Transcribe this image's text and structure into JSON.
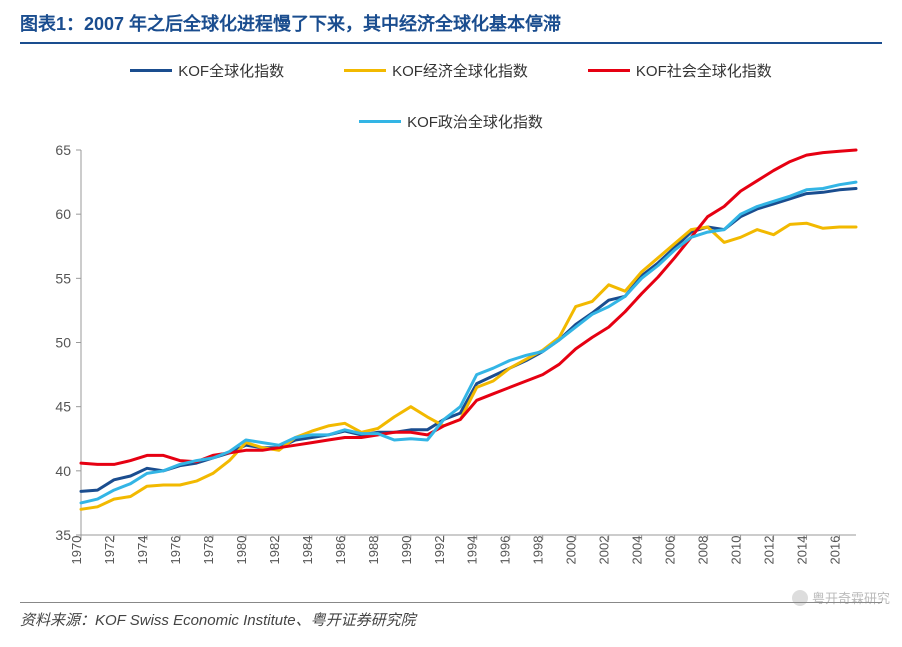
{
  "title": {
    "prefix": "图表1：",
    "text": "2007 年之后全球化进程慢了下来，其中经济全球化基本停滞"
  },
  "source": "资料来源：KOF Swiss Economic Institute、粤开证券研究院",
  "watermark": "粤开奇霖研究",
  "chart": {
    "type": "line",
    "ylim": [
      35,
      65
    ],
    "ytick_step": 5,
    "yticks": [
      35,
      40,
      45,
      50,
      55,
      60,
      65
    ],
    "xticks": [
      1970,
      1972,
      1974,
      1976,
      1978,
      1980,
      1982,
      1984,
      1986,
      1988,
      1990,
      1992,
      1994,
      1996,
      1998,
      2000,
      2002,
      2004,
      2006,
      2008,
      2010,
      2012,
      2014,
      2016
    ],
    "x_range": [
      1970,
      2017
    ],
    "background_color": "#ffffff",
    "axis_color": "#999999",
    "tick_label_color": "#555555",
    "legend_position": "top-center",
    "line_width": 3,
    "series": [
      {
        "name": "KOF全球化指数",
        "color": "#1a4d8f",
        "data": [
          38.4,
          38.5,
          39.3,
          39.6,
          40.2,
          40.0,
          40.4,
          40.6,
          41.0,
          41.4,
          42.0,
          41.8,
          41.8,
          42.4,
          42.6,
          42.8,
          43.1,
          42.8,
          43.0,
          43.0,
          43.2,
          43.2,
          44.0,
          44.5,
          46.8,
          47.4,
          48.0,
          48.6,
          49.3,
          50.2,
          51.4,
          52.3,
          53.3,
          53.6,
          55.2,
          56.2,
          57.4,
          58.6,
          59.0,
          58.8,
          59.8,
          60.4,
          60.8,
          61.2,
          61.6,
          61.7,
          61.9,
          62.0
        ]
      },
      {
        "name": "KOF经济全球化指数",
        "color": "#f2b900",
        "data": [
          37.0,
          37.2,
          37.8,
          38.0,
          38.8,
          38.9,
          38.9,
          39.2,
          39.8,
          40.8,
          42.2,
          41.8,
          41.6,
          42.6,
          43.1,
          43.5,
          43.7,
          43.0,
          43.3,
          44.2,
          45.0,
          44.2,
          43.5,
          44.0,
          46.5,
          47.0,
          48.0,
          48.7,
          49.4,
          50.4,
          52.8,
          53.2,
          54.5,
          54.0,
          55.5,
          56.6,
          57.7,
          58.8,
          59.0,
          57.8,
          58.2,
          58.8,
          58.4,
          59.2,
          59.3,
          58.9,
          59.0,
          59.0
        ]
      },
      {
        "name": "KOF社会全球化指数",
        "color": "#e60012",
        "data": [
          40.6,
          40.5,
          40.5,
          40.8,
          41.2,
          41.2,
          40.8,
          40.7,
          41.2,
          41.4,
          41.6,
          41.6,
          41.8,
          42.0,
          42.2,
          42.4,
          42.6,
          42.6,
          42.8,
          43.0,
          43.0,
          42.8,
          43.5,
          44.0,
          45.5,
          46.0,
          46.5,
          47.0,
          47.5,
          48.3,
          49.5,
          50.4,
          51.2,
          52.4,
          53.8,
          55.1,
          56.6,
          58.2,
          59.8,
          60.6,
          61.8,
          62.6,
          63.4,
          64.1,
          64.6,
          64.8,
          64.9,
          65.0
        ]
      },
      {
        "name": "KOF政治全球化指数",
        "color": "#33b5e5",
        "data": [
          37.5,
          37.8,
          38.5,
          39.0,
          39.8,
          40.0,
          40.5,
          40.8,
          41.0,
          41.5,
          42.4,
          42.2,
          42.0,
          42.6,
          42.8,
          42.8,
          43.2,
          42.9,
          42.9,
          42.4,
          42.5,
          42.4,
          44.0,
          45.0,
          47.5,
          48.0,
          48.6,
          49.0,
          49.3,
          50.2,
          51.2,
          52.2,
          52.8,
          53.6,
          55.0,
          56.0,
          57.2,
          58.2,
          58.6,
          58.8,
          60.0,
          60.6,
          61.0,
          61.4,
          61.9,
          62.0,
          62.3,
          62.5
        ]
      }
    ]
  }
}
